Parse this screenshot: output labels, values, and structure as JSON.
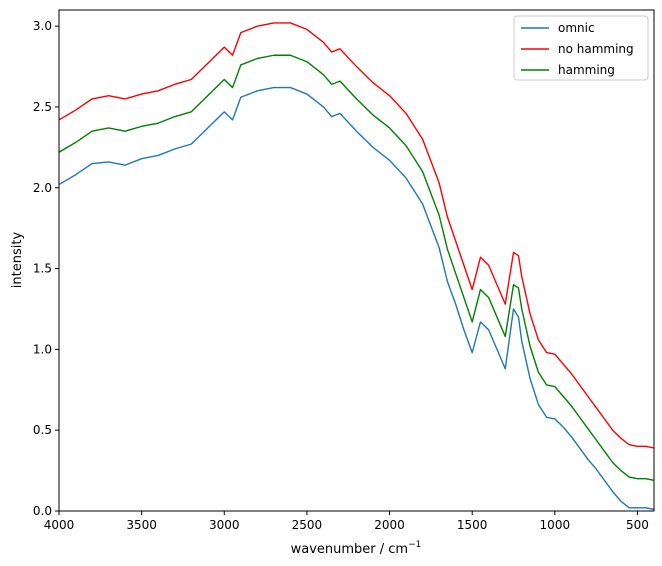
{
  "chart_data": {
    "type": "line",
    "title": "",
    "xlabel": "wavenumber / cm",
    "xlabel_superscript": "−1",
    "ylabel": "intensity",
    "xlim": [
      4000,
      400
    ],
    "ylim": [
      0,
      3.1
    ],
    "x_ticks": [
      4000,
      3500,
      3000,
      2500,
      2000,
      1500,
      1000,
      500
    ],
    "y_ticks": [
      "0.0",
      "0.5",
      "1.0",
      "1.5",
      "2.0",
      "2.5",
      "3.0"
    ],
    "grid": false,
    "legend_position": "top-right",
    "x": [
      4000,
      3900,
      3800,
      3700,
      3600,
      3500,
      3400,
      3300,
      3200,
      3100,
      3000,
      2950,
      2900,
      2800,
      2700,
      2600,
      2500,
      2400,
      2350,
      2300,
      2200,
      2100,
      2000,
      1900,
      1800,
      1700,
      1650,
      1600,
      1550,
      1500,
      1450,
      1400,
      1350,
      1300,
      1250,
      1220,
      1200,
      1150,
      1100,
      1050,
      1000,
      950,
      900,
      850,
      800,
      750,
      700,
      650,
      600,
      550,
      500,
      450,
      400
    ],
    "series": [
      {
        "name": "omnic",
        "color": "#1f77b4",
        "values": [
          2.02,
          2.08,
          2.15,
          2.16,
          2.14,
          2.18,
          2.2,
          2.24,
          2.27,
          2.37,
          2.47,
          2.42,
          2.56,
          2.6,
          2.62,
          2.62,
          2.58,
          2.5,
          2.44,
          2.46,
          2.35,
          2.25,
          2.17,
          2.06,
          1.9,
          1.63,
          1.42,
          1.28,
          1.12,
          0.98,
          1.17,
          1.12,
          1.0,
          0.88,
          1.25,
          1.2,
          1.05,
          0.82,
          0.66,
          0.58,
          0.57,
          0.52,
          0.46,
          0.39,
          0.32,
          0.26,
          0.19,
          0.12,
          0.06,
          0.02,
          0.02,
          0.02,
          0.01
        ]
      },
      {
        "name": "no hamming",
        "color": "#ff0000",
        "values": [
          2.42,
          2.48,
          2.55,
          2.57,
          2.55,
          2.58,
          2.6,
          2.64,
          2.67,
          2.77,
          2.87,
          2.82,
          2.96,
          3.0,
          3.02,
          3.02,
          2.98,
          2.9,
          2.84,
          2.86,
          2.75,
          2.65,
          2.57,
          2.46,
          2.3,
          2.03,
          1.82,
          1.67,
          1.52,
          1.37,
          1.57,
          1.52,
          1.4,
          1.28,
          1.6,
          1.58,
          1.45,
          1.22,
          1.06,
          0.98,
          0.97,
          0.91,
          0.85,
          0.78,
          0.71,
          0.64,
          0.57,
          0.5,
          0.45,
          0.41,
          0.4,
          0.4,
          0.39
        ]
      },
      {
        "name": "hamming",
        "color": "#008000",
        "values": [
          2.22,
          2.28,
          2.35,
          2.37,
          2.35,
          2.38,
          2.4,
          2.44,
          2.47,
          2.57,
          2.67,
          2.62,
          2.76,
          2.8,
          2.82,
          2.82,
          2.78,
          2.7,
          2.64,
          2.66,
          2.55,
          2.45,
          2.37,
          2.26,
          2.1,
          1.83,
          1.62,
          1.47,
          1.32,
          1.17,
          1.37,
          1.32,
          1.2,
          1.08,
          1.4,
          1.38,
          1.25,
          1.02,
          0.86,
          0.78,
          0.77,
          0.71,
          0.65,
          0.58,
          0.51,
          0.44,
          0.37,
          0.3,
          0.25,
          0.21,
          0.2,
          0.2,
          0.19
        ]
      }
    ]
  }
}
